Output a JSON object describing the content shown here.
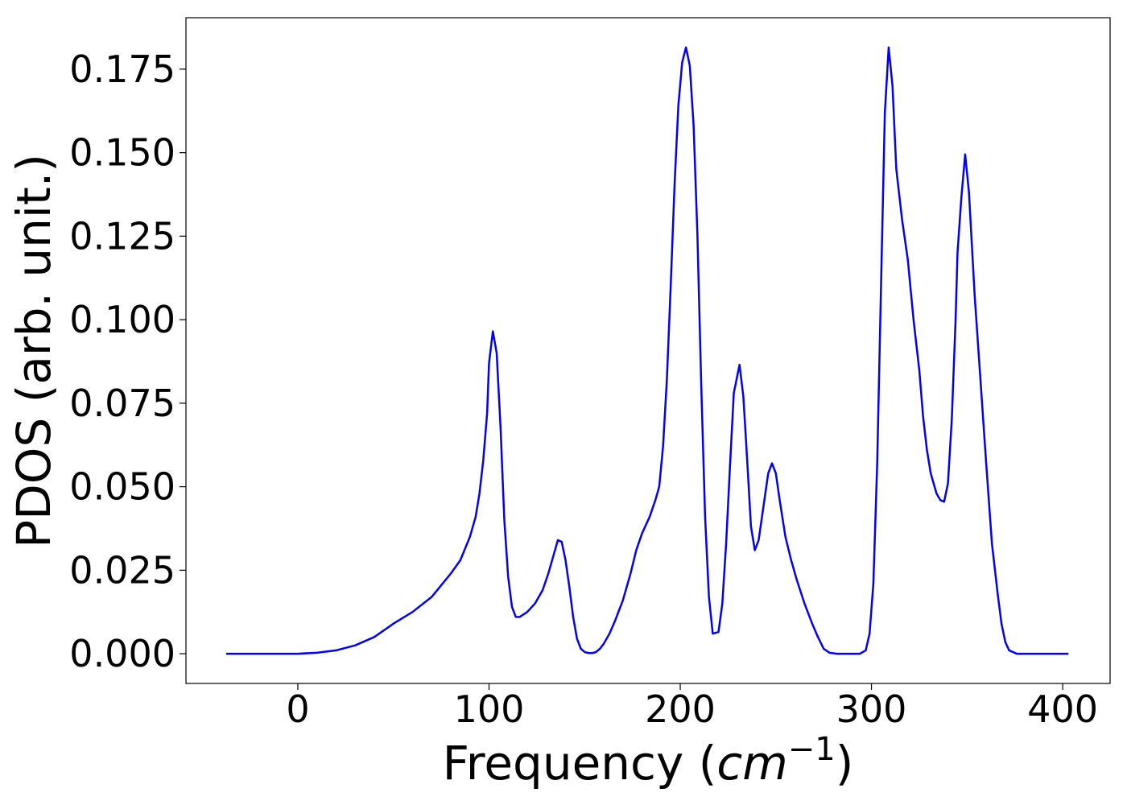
{
  "chart_data": {
    "type": "line",
    "xlabel": [
      "Frequency (",
      "cm",
      "−1",
      ")"
    ],
    "ylabel": "PDOS (arb. unit.)",
    "color": "#0000ff",
    "xlim": [
      -58.5,
      424.8
    ],
    "ylim": [
      -0.0089,
      0.1904
    ],
    "xticks": [
      0,
      100,
      200,
      300,
      400
    ],
    "yticks": [
      {
        "value": 0,
        "label": "0.000"
      },
      {
        "value": 0.025,
        "label": "0.025"
      },
      {
        "value": 0.05,
        "label": "0.050"
      },
      {
        "value": 0.075,
        "label": "0.075"
      },
      {
        "value": 0.1,
        "label": "0.100"
      },
      {
        "value": 0.125,
        "label": "0.125"
      },
      {
        "value": 0.15,
        "label": "0.150"
      },
      {
        "value": 0.175,
        "label": "0.175"
      }
    ],
    "x": [
      -37.5,
      0,
      10,
      20,
      30,
      40,
      50,
      60,
      70,
      80,
      85,
      90,
      93,
      95,
      97,
      99,
      100,
      102,
      104,
      106,
      108,
      110,
      112,
      114,
      116,
      120,
      124,
      128,
      131,
      134,
      136,
      138,
      140,
      142,
      144,
      146,
      148,
      150,
      152,
      154,
      156,
      158,
      160,
      163,
      166,
      170,
      174,
      177,
      180,
      184,
      187,
      189,
      191,
      193,
      195,
      197,
      199,
      201,
      203,
      205,
      207,
      209,
      211,
      213,
      215,
      217,
      220,
      222,
      224,
      226,
      228,
      231,
      233,
      235,
      237,
      239,
      241,
      244,
      246,
      248,
      250,
      252,
      255,
      258,
      261,
      265,
      269,
      272,
      275,
      278,
      282,
      294,
      297,
      299,
      301,
      303,
      305,
      307,
      309,
      311,
      313,
      316,
      319,
      322,
      325,
      327,
      329,
      331,
      334,
      336,
      338,
      340,
      342,
      344,
      345,
      347,
      349,
      351,
      354,
      357,
      360,
      363,
      366,
      368,
      370,
      372,
      376,
      403
    ],
    "y": [
      0,
      0,
      0.0003,
      0.001,
      0.0025,
      0.005,
      0.009,
      0.0125,
      0.017,
      0.024,
      0.028,
      0.035,
      0.041,
      0.048,
      0.058,
      0.072,
      0.087,
      0.0965,
      0.09,
      0.068,
      0.04,
      0.023,
      0.014,
      0.011,
      0.011,
      0.0125,
      0.015,
      0.019,
      0.024,
      0.03,
      0.034,
      0.0335,
      0.028,
      0.02,
      0.011,
      0.0045,
      0.0015,
      0.0005,
      0.0002,
      0.0002,
      0.0005,
      0.0015,
      0.003,
      0.006,
      0.01,
      0.016,
      0.024,
      0.031,
      0.036,
      0.041,
      0.046,
      0.05,
      0.062,
      0.082,
      0.11,
      0.14,
      0.164,
      0.177,
      0.1815,
      0.176,
      0.158,
      0.125,
      0.08,
      0.041,
      0.017,
      0.006,
      0.0065,
      0.015,
      0.033,
      0.056,
      0.078,
      0.0865,
      0.077,
      0.058,
      0.038,
      0.031,
      0.034,
      0.046,
      0.054,
      0.057,
      0.054,
      0.046,
      0.035,
      0.028,
      0.022,
      0.015,
      0.009,
      0.005,
      0.0015,
      0.0003,
      0,
      0,
      0.001,
      0.006,
      0.021,
      0.057,
      0.11,
      0.162,
      0.1815,
      0.17,
      0.145,
      0.13,
      0.118,
      0.1,
      0.085,
      0.071,
      0.061,
      0.054,
      0.048,
      0.046,
      0.0455,
      0.051,
      0.07,
      0.1,
      0.12,
      0.1365,
      0.1495,
      0.138,
      0.107,
      0.082,
      0.057,
      0.033,
      0.018,
      0.009,
      0.0035,
      0.001,
      0,
      0
    ]
  }
}
